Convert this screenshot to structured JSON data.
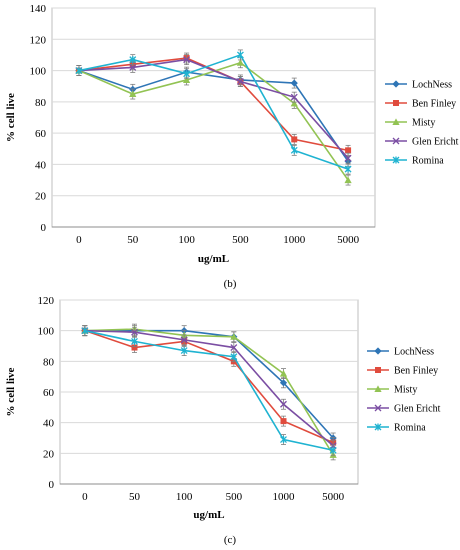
{
  "chart_data": [
    {
      "type": "line",
      "panel_label": "(b)",
      "xlabel": "ug/mL",
      "ylabel": "% cell live",
      "categories": [
        "0",
        "50",
        "100",
        "500",
        "1000",
        "5000"
      ],
      "ylim": [
        0,
        140
      ],
      "yticks": [
        0,
        20,
        40,
        60,
        80,
        100,
        120,
        140
      ],
      "grid": "horizontal",
      "legend_position": "right",
      "series": [
        {
          "name": "LochNess",
          "color": "#2E75B6",
          "marker": "diamond",
          "values": [
            100,
            88,
            99,
            94,
            92,
            42
          ]
        },
        {
          "name": "Ben Finley",
          "color": "#E04B3D",
          "marker": "square",
          "values": [
            100,
            104,
            108,
            93,
            56,
            49
          ]
        },
        {
          "name": "Misty",
          "color": "#92C353",
          "marker": "triangle",
          "values": [
            100,
            85,
            94,
            105,
            79,
            30
          ]
        },
        {
          "name": "Glen Ericht",
          "color": "#7B4EA3",
          "marker": "x",
          "values": [
            100,
            102,
            107,
            93,
            83,
            44
          ]
        },
        {
          "name": "Romina",
          "color": "#1FB3D1",
          "marker": "star",
          "values": [
            100,
            107,
            98,
            110,
            49,
            37
          ]
        }
      ]
    },
    {
      "type": "line",
      "panel_label": "(c)",
      "xlabel": "ug/mL",
      "ylabel": "% cell live",
      "categories": [
        "0",
        "50",
        "100",
        "500",
        "1000",
        "5000"
      ],
      "ylim": [
        0,
        120
      ],
      "yticks": [
        0,
        20,
        40,
        60,
        80,
        100,
        120
      ],
      "grid": "horizontal",
      "legend_position": "right",
      "series": [
        {
          "name": "LochNess",
          "color": "#2E75B6",
          "marker": "diamond",
          "values": [
            100,
            100,
            100,
            96,
            66,
            30
          ]
        },
        {
          "name": "Ben Finley",
          "color": "#E04B3D",
          "marker": "square",
          "values": [
            100,
            89,
            93,
            80,
            41,
            27
          ]
        },
        {
          "name": "Misty",
          "color": "#92C353",
          "marker": "triangle",
          "values": [
            100,
            101,
            97,
            96,
            72,
            19
          ]
        },
        {
          "name": "Glen Ericht",
          "color": "#7B4EA3",
          "marker": "x",
          "values": [
            100,
            99,
            94,
            89,
            52,
            25
          ]
        },
        {
          "name": "Romina",
          "color": "#1FB3D1",
          "marker": "star",
          "values": [
            100,
            93,
            87,
            83,
            29,
            22
          ]
        }
      ]
    }
  ]
}
